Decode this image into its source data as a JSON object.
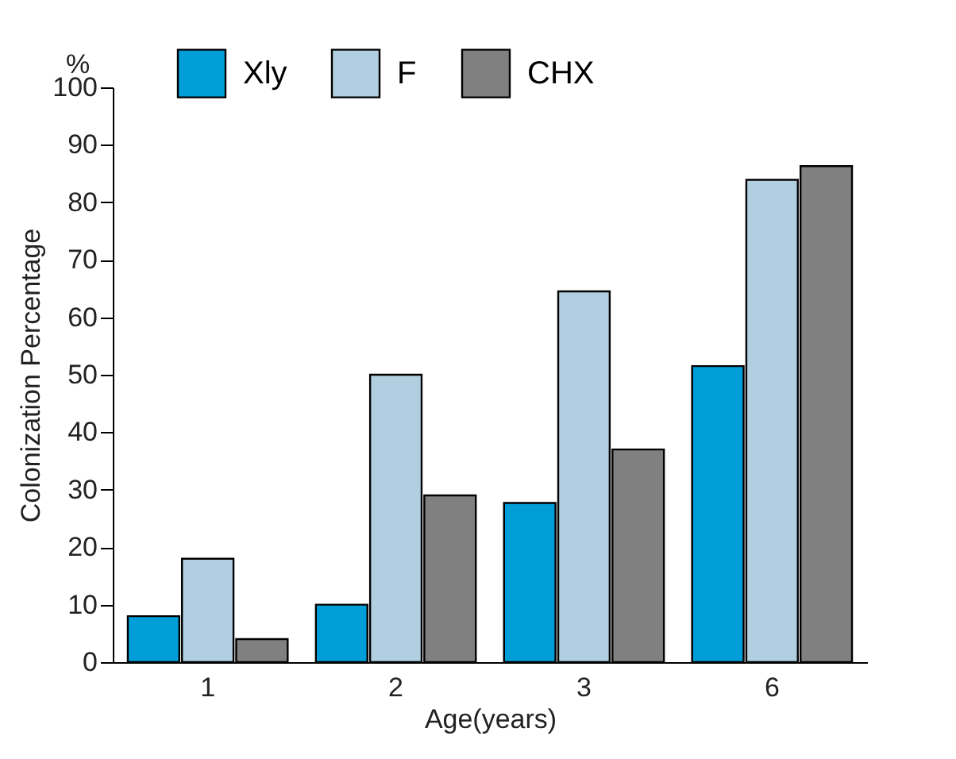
{
  "chart_data": {
    "type": "bar",
    "xlabel": "Age(years)",
    "ylabel": "Colonization Percentage",
    "annotations": [
      "%"
    ],
    "categories": [
      "1",
      "2",
      "3",
      "6"
    ],
    "series": [
      {
        "name": "Xly",
        "color": "#009ed8",
        "values": [
          8,
          10,
          27.7,
          51.5
        ]
      },
      {
        "name": "F",
        "color": "#b0cfe0",
        "values": [
          18,
          50,
          64.5,
          83.9
        ]
      },
      {
        "name": "CHX",
        "color": "#808080",
        "values": [
          4,
          29,
          37.0,
          86.3
        ]
      }
    ],
    "ylim": [
      0,
      100
    ],
    "yticks": [
      0,
      10,
      20,
      30,
      40,
      50,
      60,
      70,
      80,
      90,
      100
    ],
    "grid": false,
    "legend": "top"
  }
}
